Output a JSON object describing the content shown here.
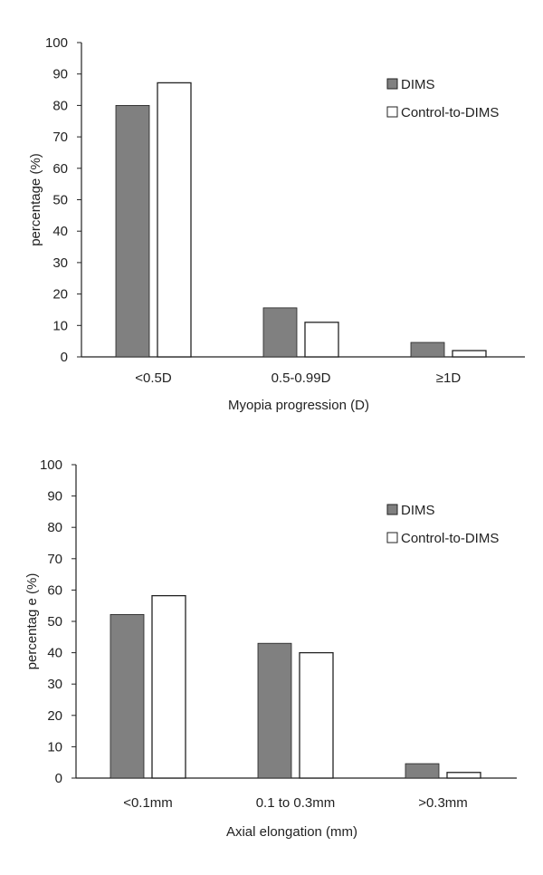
{
  "colors": {
    "dims": "#808080",
    "control": "#ffffff",
    "axis": "#222222",
    "bar_stroke": "#222222"
  },
  "chart_data": [
    {
      "type": "bar",
      "categories": [
        "<0.5D",
        "0.5-0.99D",
        "≥1D"
      ],
      "series": [
        {
          "name": "DIMS",
          "values": [
            80,
            15.6,
            4.6
          ]
        },
        {
          "name": "Control-to-DIMS",
          "values": [
            87.2,
            11,
            2
          ]
        }
      ],
      "xlabel": "Myopia progression (D)",
      "ylabel": "percentage (%)",
      "ylim": [
        0,
        100
      ],
      "yticks": [
        "0",
        "10",
        "20",
        "30",
        "40",
        "50",
        "60",
        "70",
        "80",
        "90",
        "100"
      ],
      "grid": false,
      "legend": "top-right"
    },
    {
      "type": "bar",
      "categories": [
        "<0.1mm",
        "0.1 to 0.3mm",
        ">0.3mm"
      ],
      "series": [
        {
          "name": "DIMS",
          "values": [
            52.2,
            43,
            4.6
          ]
        },
        {
          "name": "Control-to-DIMS",
          "values": [
            58.2,
            40,
            1.8
          ]
        }
      ],
      "xlabel": "Axial elongation (mm)",
      "ylabel": "percentag e (%)",
      "ylim": [
        0,
        100
      ],
      "yticks": [
        "0",
        "10",
        "20",
        "30",
        "40",
        "50",
        "60",
        "70",
        "80",
        "90",
        "100"
      ],
      "grid": false,
      "legend": "top-right"
    }
  ]
}
